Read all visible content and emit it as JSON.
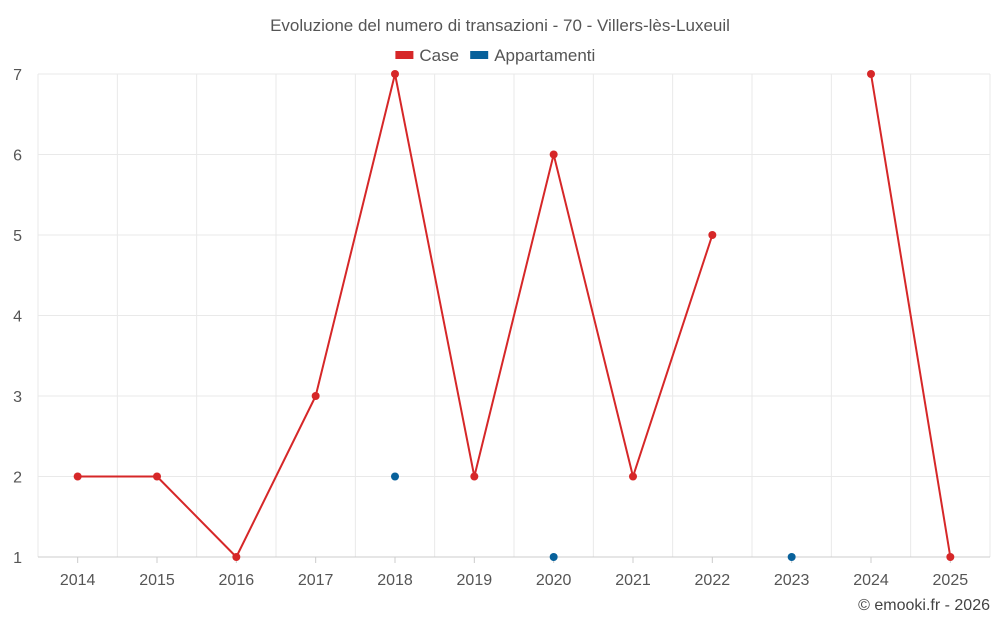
{
  "chart_data": {
    "type": "line",
    "title": "Evoluzione del numero di transazioni - 70 - Villers-lès-Luxeuil",
    "xlabel": "",
    "ylabel": "",
    "categories": [
      "2014",
      "2015",
      "2016",
      "2017",
      "2018",
      "2019",
      "2020",
      "2021",
      "2022",
      "2023",
      "2024",
      "2025"
    ],
    "ylim": [
      1,
      7
    ],
    "yticks": [
      1,
      2,
      3,
      4,
      5,
      6,
      7
    ],
    "grid": true,
    "legend_position": "top-center",
    "series": [
      {
        "name": "Case",
        "color": "#d62728",
        "values": [
          2,
          2,
          1,
          3,
          7,
          2,
          6,
          2,
          5,
          null,
          7,
          1
        ]
      },
      {
        "name": "Appartamenti",
        "color": "#08619b",
        "values": [
          null,
          null,
          null,
          null,
          2,
          null,
          1,
          null,
          null,
          1,
          null,
          null
        ]
      }
    ]
  },
  "credit": "© emooki.fr - 2026"
}
